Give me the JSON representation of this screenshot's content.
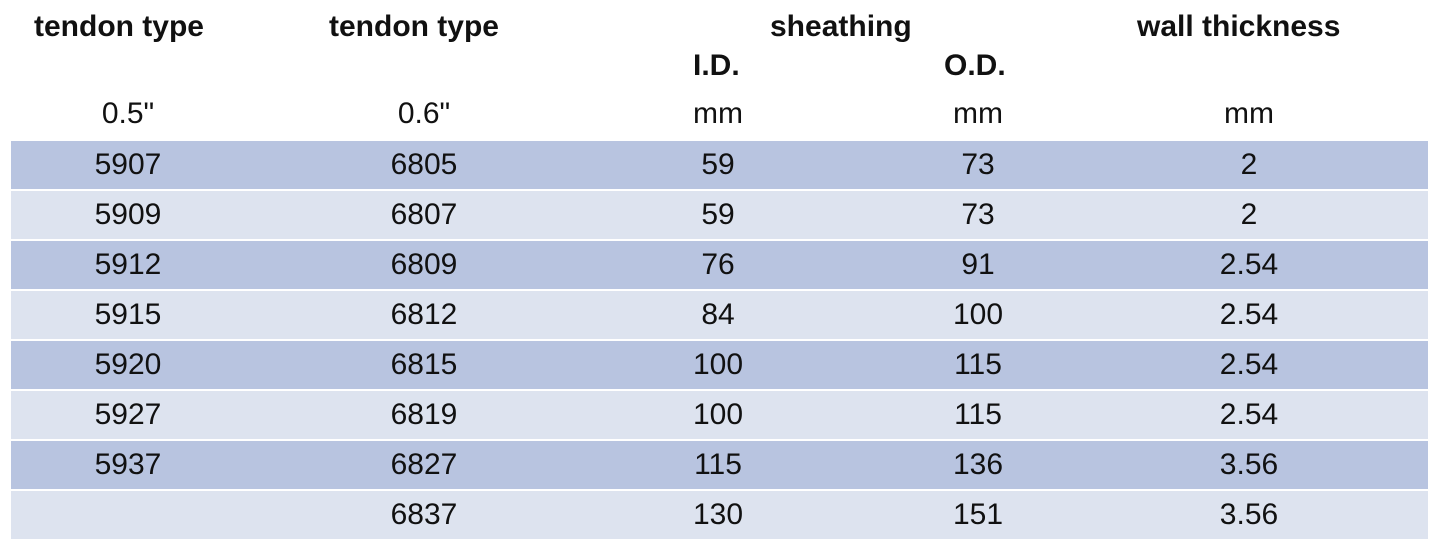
{
  "headers": {
    "col1": "tendon type",
    "col2": "tendon type",
    "sheathing": "sheathing",
    "wall": "wall thickness",
    "id": "I.D.",
    "od": "O.D."
  },
  "units": {
    "col1": "0.5\"",
    "col2": "0.6\"",
    "id": "mm",
    "od": "mm",
    "wall": "mm"
  },
  "colors": {
    "row_dark": "#b8c4e0",
    "row_light": "#dde3ef"
  },
  "rows": [
    [
      "5907",
      "6805",
      "59",
      "73",
      "2"
    ],
    [
      "5909",
      "6807",
      "59",
      "73",
      "2"
    ],
    [
      "5912",
      "6809",
      "76",
      "91",
      "2.54"
    ],
    [
      "5915",
      "6812",
      "84",
      "100",
      "2.54"
    ],
    [
      "5920",
      "6815",
      "100",
      "115",
      "2.54"
    ],
    [
      "5927",
      "6819",
      "100",
      "115",
      "2.54"
    ],
    [
      "5937",
      "6827",
      "115",
      "136",
      "3.56"
    ],
    [
      "",
      "6837",
      "130",
      "151",
      "3.56"
    ]
  ]
}
